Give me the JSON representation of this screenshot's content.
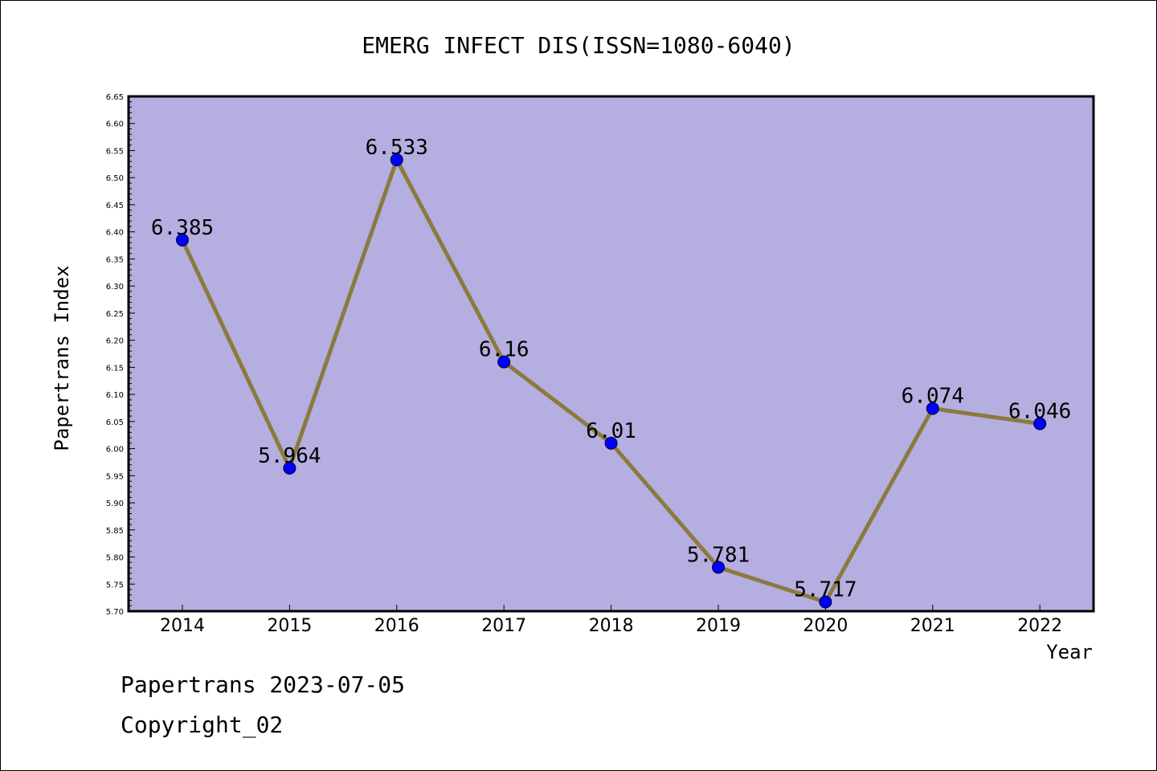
{
  "chart_data": {
    "type": "line",
    "title": "EMERG INFECT DIS(ISSN=1080-6040)",
    "xlabel": "Year",
    "ylabel": "Papertrans Index",
    "categories": [
      "2014",
      "2015",
      "2016",
      "2017",
      "2018",
      "2019",
      "2020",
      "2021",
      "2022"
    ],
    "values": [
      6.385,
      5.964,
      6.533,
      6.16,
      6.01,
      5.781,
      5.717,
      6.074,
      6.046
    ],
    "data_labels": [
      "6.385",
      "5.964",
      "6.533",
      "6.16",
      "6.01",
      "5.781",
      "5.717",
      "6.074",
      "6.046"
    ],
    "ylim": [
      5.7,
      6.65
    ],
    "yticks": [
      "5.70",
      "5.75",
      "5.80",
      "5.85",
      "5.90",
      "5.95",
      "6.00",
      "6.05",
      "6.10",
      "6.15",
      "6.20",
      "6.25",
      "6.30",
      "6.35",
      "6.40",
      "6.45",
      "6.50",
      "6.55",
      "6.60",
      "6.65"
    ],
    "grid": false,
    "colors": {
      "plot_background": "#b5aee0",
      "line": "#8b7a3e",
      "marker": "#0000ff"
    }
  },
  "footer": {
    "date_line": "Papertrans 2023-07-05",
    "copyright": "Copyright_02"
  }
}
